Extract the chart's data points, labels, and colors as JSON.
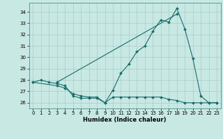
{
  "xlabel": "Humidex (Indice chaleur)",
  "xlim": [
    -0.5,
    23.5
  ],
  "ylim": [
    25.5,
    34.8
  ],
  "xticks": [
    0,
    1,
    2,
    3,
    4,
    5,
    6,
    7,
    8,
    9,
    10,
    11,
    12,
    13,
    14,
    15,
    16,
    17,
    18,
    19,
    20,
    21,
    22,
    23
  ],
  "yticks": [
    26,
    27,
    28,
    29,
    30,
    31,
    32,
    33,
    34
  ],
  "bg_color": "#c8e8e4",
  "line_color": "#1a6b6b",
  "curves": [
    {
      "x": [
        0,
        1,
        2,
        3,
        4,
        5,
        6,
        7,
        8,
        9,
        10,
        11,
        12,
        13,
        14,
        15,
        16,
        17,
        18,
        19,
        20,
        21,
        22,
        23
      ],
      "y": [
        27.8,
        28.0,
        27.8,
        27.7,
        27.5,
        26.6,
        26.4,
        26.4,
        26.4,
        26.0,
        27.1,
        28.6,
        29.4,
        30.5,
        31.0,
        32.3,
        33.3,
        33.1,
        34.3,
        32.5,
        29.9,
        26.6,
        26.0,
        26.0
      ]
    },
    {
      "x": [
        3,
        18
      ],
      "y": [
        27.8,
        33.8
      ]
    },
    {
      "x": [
        0,
        3,
        4,
        5,
        6,
        7,
        8,
        9,
        10,
        11,
        12,
        13,
        14,
        15,
        16,
        17,
        18,
        19,
        20,
        21,
        22,
        23
      ],
      "y": [
        27.8,
        27.5,
        27.3,
        26.8,
        26.6,
        26.5,
        26.5,
        26.0,
        26.5,
        26.5,
        26.5,
        26.5,
        26.5,
        26.5,
        26.5,
        26.3,
        26.2,
        26.0,
        26.0,
        26.0,
        26.0,
        26.0
      ]
    }
  ]
}
